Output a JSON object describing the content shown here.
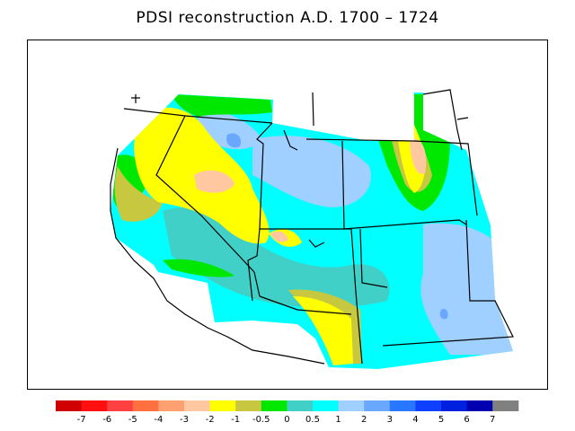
{
  "title": "PDSI reconstruction A.D. 1700 – 1724",
  "legend": {
    "colors": [
      "#d00000",
      "#ff1010",
      "#ff4040",
      "#ff7040",
      "#ffa070",
      "#ffc8a0",
      "#ffff00",
      "#c8c840",
      "#00e800",
      "#40d0c8",
      "#00ffff",
      "#a0d0ff",
      "#6aa8ff",
      "#2878ff",
      "#1040ff",
      "#0020e0",
      "#0000b0",
      "#808080"
    ],
    "labels": [
      "-7",
      "-6",
      "-5",
      "-4",
      "-3",
      "-2",
      "-1",
      "-0.5",
      "0",
      "0.5",
      "1",
      "2",
      "3",
      "4",
      "5",
      "6",
      "7"
    ]
  }
}
